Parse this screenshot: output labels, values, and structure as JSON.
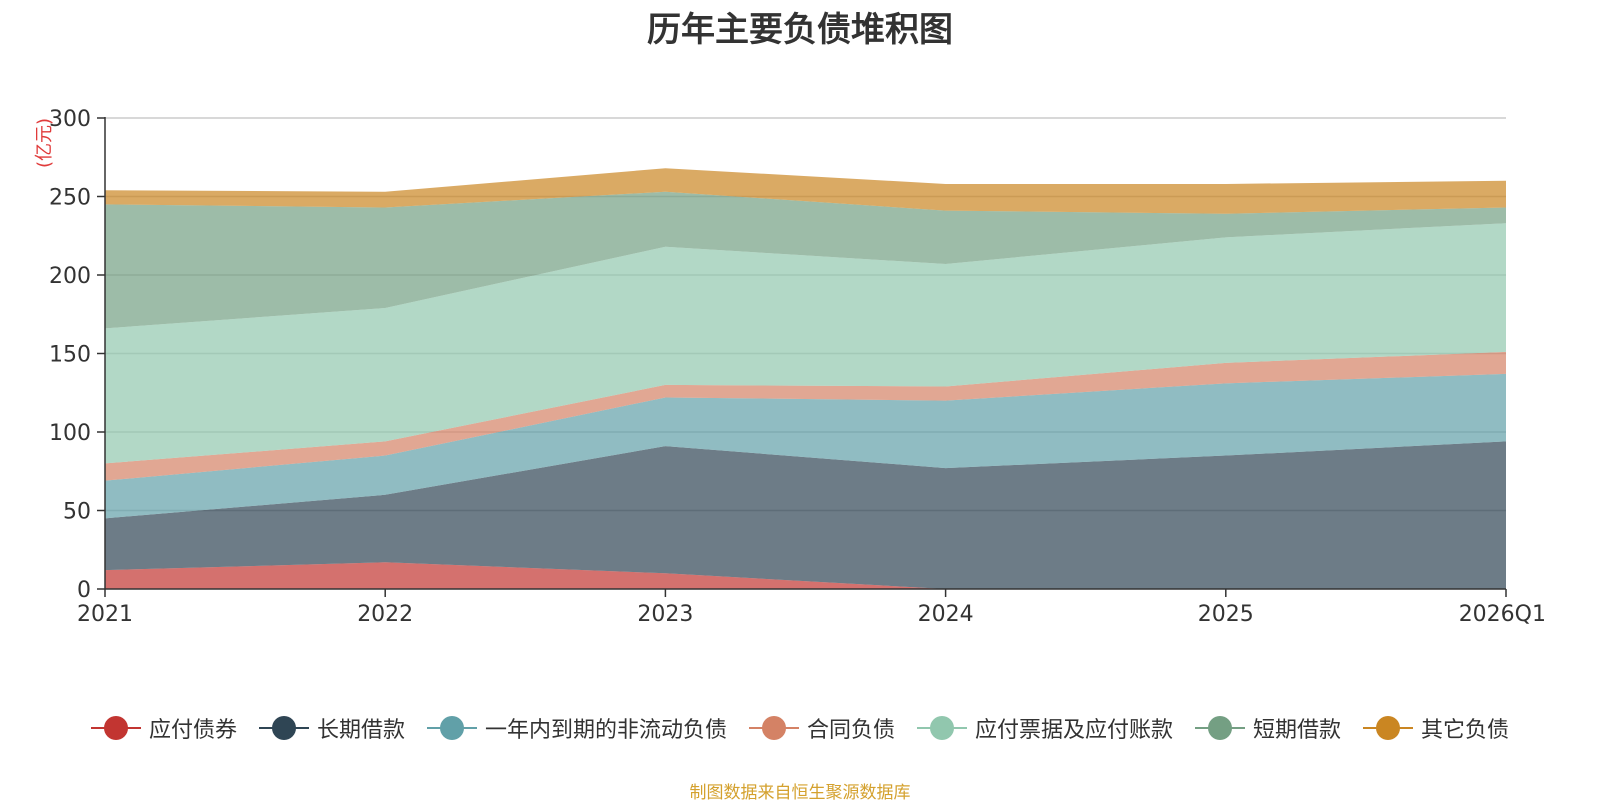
{
  "chart_data": {
    "type": "area",
    "stacked": true,
    "title": "历年主要负债堆积图",
    "ylabel": "(亿元)",
    "xlabel": "",
    "categories": [
      "2021",
      "2022",
      "2023",
      "2024",
      "2025",
      "2026Q1"
    ],
    "ylim": [
      0,
      300
    ],
    "yticks": [
      0,
      50,
      100,
      150,
      200,
      250,
      300
    ],
    "grid": true,
    "legend_position": "bottom",
    "series": [
      {
        "name": "应付债券",
        "color": "#c23531",
        "values": [
          12,
          17,
          10,
          0,
          0,
          0
        ]
      },
      {
        "name": "长期借款",
        "color": "#2f4554",
        "values": [
          33,
          43,
          81,
          77,
          85,
          94
        ]
      },
      {
        "name": "一年内到期的非流动负债",
        "color": "#61a0a8",
        "values": [
          24,
          25,
          31,
          43,
          46,
          43
        ]
      },
      {
        "name": "合同负债",
        "color": "#d48265",
        "values": [
          11,
          9,
          8,
          9,
          13,
          14
        ]
      },
      {
        "name": "应付票据及应付账款",
        "color": "#91c7ae",
        "values": [
          86,
          85,
          88,
          78,
          80,
          82
        ]
      },
      {
        "name": "短期借款",
        "color": "#749f83",
        "values": [
          79,
          64,
          35,
          34,
          15,
          10
        ]
      },
      {
        "name": "其它负债",
        "color": "#ca8622",
        "values": [
          9,
          10,
          15,
          17,
          19,
          17
        ]
      }
    ],
    "source_note": "制图数据来自恒生聚源数据库"
  }
}
